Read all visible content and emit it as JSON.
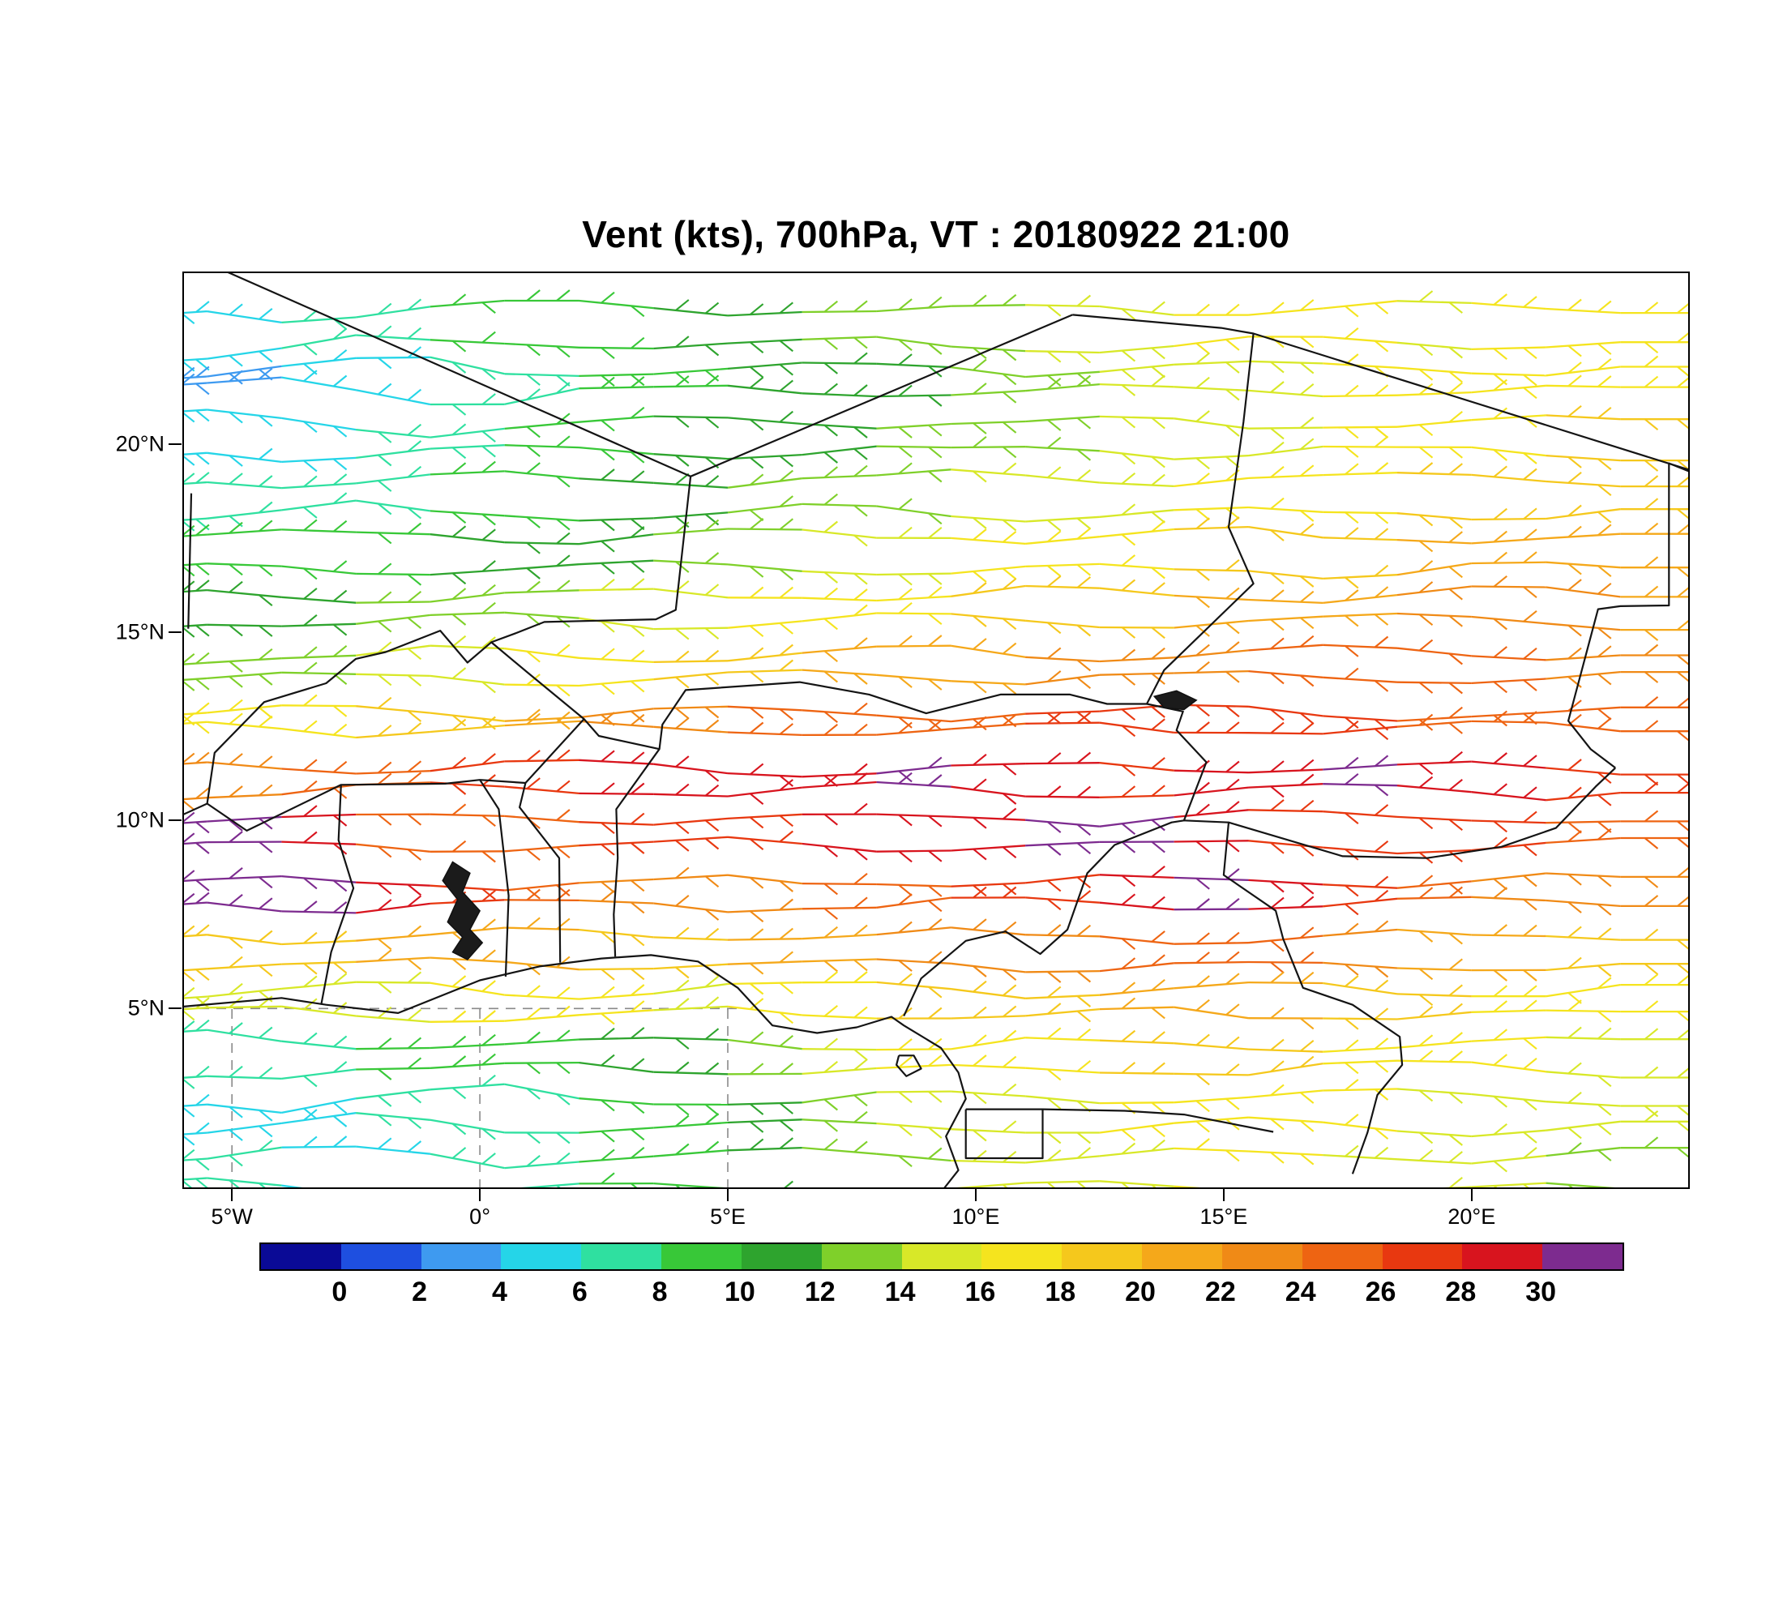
{
  "title": "Vent (kts), 700hPa, VT : 20180922  21:00",
  "map": {
    "extent": {
      "lon_min": -6,
      "lon_max": 24.4,
      "lat_min": 0.2,
      "lat_max": 24.6
    },
    "lat_ticks": [
      {
        "label": "20°N",
        "lat": 20
      },
      {
        "label": "15°N",
        "lat": 15
      },
      {
        "label": "10°N",
        "lat": 10
      },
      {
        "label": "5°N",
        "lat": 5
      }
    ],
    "lon_ticks": [
      {
        "label": "5°W",
        "lon": -5
      },
      {
        "label": "0°",
        "lon": 0
      },
      {
        "label": "5°E",
        "lon": 5
      },
      {
        "label": "10°E",
        "lon": 10
      },
      {
        "label": "15°E",
        "lon": 15
      },
      {
        "label": "20°E",
        "lon": 20
      }
    ],
    "dashed_gridlines": {
      "horizontal": [
        {
          "lat": 5,
          "lon_from": -6,
          "lon_to": 5.2
        }
      ],
      "vertical": [
        {
          "lon": -5,
          "lat_from": 0.2,
          "lat_to": 5
        },
        {
          "lon": 0,
          "lat_from": 0.2,
          "lat_to": 5
        },
        {
          "lon": 5,
          "lat_from": 0.2,
          "lat_to": 5
        }
      ]
    },
    "borders": [
      [
        [
          -5.2,
          24.65
        ],
        [
          4.25,
          19.15
        ]
      ],
      [
        [
          4.25,
          19.15
        ],
        [
          11.95,
          23.45
        ]
      ],
      [
        [
          11.95,
          23.45
        ],
        [
          14.95,
          23.1
        ],
        [
          15.6,
          22.95
        ],
        [
          24.45,
          19.3
        ]
      ],
      [
        [
          15.6,
          22.95
        ],
        [
          15.4,
          20.6
        ],
        [
          15.1,
          17.8
        ],
        [
          15.6,
          16.3
        ],
        [
          13.8,
          14.0
        ],
        [
          13.45,
          13.1
        ]
      ],
      [
        [
          4.25,
          19.15
        ],
        [
          3.95,
          15.6
        ],
        [
          3.55,
          15.35
        ],
        [
          1.3,
          15.28
        ],
        [
          0.7,
          14.97
        ],
        [
          0.23,
          14.74
        ],
        [
          -0.25,
          14.2
        ],
        [
          -0.8,
          15.05
        ],
        [
          -1.9,
          14.48
        ],
        [
          -2.5,
          14.3
        ],
        [
          -3.1,
          13.65
        ],
        [
          -4.35,
          13.15
        ],
        [
          -5.35,
          11.8
        ],
        [
          -5.5,
          10.45
        ],
        [
          -6,
          10.15
        ]
      ],
      [
        [
          0.23,
          14.74
        ],
        [
          0.95,
          13.95
        ],
        [
          2.1,
          12.7
        ],
        [
          2.4,
          12.25
        ],
        [
          3.62,
          11.9
        ],
        [
          3.68,
          12.55
        ],
        [
          4.15,
          13.47
        ],
        [
          6.45,
          13.68
        ],
        [
          7.85,
          13.35
        ],
        [
          9.0,
          12.85
        ],
        [
          10.5,
          13.35
        ],
        [
          11.9,
          13.35
        ],
        [
          12.65,
          13.1
        ],
        [
          13.45,
          13.1
        ]
      ],
      [
        [
          3.62,
          11.9
        ],
        [
          2.75,
          10.3
        ],
        [
          2.78,
          9.0
        ],
        [
          2.7,
          7.5
        ],
        [
          2.73,
          6.38
        ]
      ],
      [
        [
          1.62,
          6.22
        ],
        [
          1.6,
          9.0
        ],
        [
          0.8,
          10.35
        ],
        [
          0.92,
          11.0
        ]
      ],
      [
        [
          0.52,
          5.85
        ],
        [
          0.58,
          8.0
        ],
        [
          0.38,
          10.3
        ],
        [
          0.0,
          11.08
        ]
      ],
      [
        [
          -3.2,
          5.1
        ],
        [
          -3.0,
          6.5
        ],
        [
          -2.55,
          8.2
        ],
        [
          -2.85,
          9.48
        ],
        [
          -2.8,
          10.95
        ]
      ],
      [
        [
          -5.5,
          10.45
        ],
        [
          -4.7,
          9.73
        ],
        [
          -2.8,
          10.95
        ],
        [
          -0.7,
          10.98
        ],
        [
          0.0,
          11.08
        ],
        [
          0.92,
          11.0
        ],
        [
          2.1,
          12.7
        ]
      ],
      [
        [
          -6,
          5.05
        ],
        [
          -4.0,
          5.28
        ],
        [
          -3.1,
          5.1
        ],
        [
          -1.65,
          4.88
        ],
        [
          0.0,
          5.75
        ],
        [
          1.2,
          6.12
        ],
        [
          2.45,
          6.33
        ],
        [
          3.45,
          6.42
        ],
        [
          4.4,
          6.25
        ],
        [
          5.2,
          5.55
        ],
        [
          5.9,
          4.55
        ],
        [
          6.8,
          4.35
        ],
        [
          7.6,
          4.5
        ],
        [
          8.3,
          4.78
        ],
        [
          8.55,
          4.55
        ],
        [
          9.3,
          3.95
        ],
        [
          9.65,
          3.3
        ],
        [
          9.8,
          2.6
        ],
        [
          9.4,
          1.6
        ],
        [
          9.65,
          0.7
        ],
        [
          9.35,
          0.2
        ]
      ],
      [
        [
          8.55,
          4.8
        ],
        [
          8.9,
          5.8
        ],
        [
          9.8,
          6.8
        ],
        [
          10.6,
          7.05
        ],
        [
          11.3,
          6.45
        ],
        [
          11.85,
          7.1
        ],
        [
          12.25,
          8.6
        ],
        [
          12.8,
          9.35
        ],
        [
          13.95,
          9.95
        ],
        [
          14.2,
          10.0
        ],
        [
          14.65,
          11.55
        ],
        [
          14.05,
          12.4
        ],
        [
          14.18,
          12.9
        ],
        [
          13.45,
          13.1
        ]
      ],
      [
        [
          14.2,
          10.0
        ],
        [
          15.1,
          9.95
        ],
        [
          15.0,
          8.55
        ],
        [
          16.05,
          7.6
        ],
        [
          16.2,
          6.85
        ],
        [
          16.6,
          5.55
        ],
        [
          17.6,
          5.1
        ],
        [
          18.55,
          4.25
        ],
        [
          18.6,
          3.5
        ],
        [
          18.1,
          2.7
        ],
        [
          17.9,
          1.7
        ],
        [
          17.6,
          0.6
        ]
      ],
      [
        [
          15.1,
          9.95
        ],
        [
          17.4,
          9.05
        ],
        [
          19.1,
          9.0
        ],
        [
          20.6,
          9.3
        ],
        [
          21.7,
          9.8
        ],
        [
          22.5,
          10.9
        ],
        [
          22.9,
          11.4
        ]
      ],
      [
        [
          24.45,
          19.25
        ],
        [
          23.98,
          19.5
        ],
        [
          23.98,
          15.72
        ],
        [
          23.0,
          15.7
        ],
        [
          22.55,
          15.62
        ],
        [
          21.95,
          12.65
        ],
        [
          22.4,
          11.9
        ],
        [
          22.9,
          11.4
        ]
      ],
      [
        [
          9.8,
          2.32
        ],
        [
          11.35,
          2.32
        ],
        [
          13.0,
          2.28
        ],
        [
          14.2,
          2.18
        ],
        [
          16.0,
          1.72
        ]
      ],
      [
        [
          9.8,
          2.32
        ],
        [
          9.8,
          1.02
        ],
        [
          11.35,
          1.02
        ],
        [
          11.35,
          2.32
        ]
      ],
      [
        [
          8.45,
          3.75
        ],
        [
          8.75,
          3.75
        ],
        [
          8.9,
          3.4
        ],
        [
          8.6,
          3.2
        ],
        [
          8.4,
          3.5
        ],
        [
          8.45,
          3.75
        ]
      ],
      [
        [
          -5.88,
          15.1
        ],
        [
          -5.82,
          18.7
        ]
      ]
    ],
    "lakes": [
      [
        [
          -0.25,
          6.3
        ],
        [
          0.05,
          6.75
        ],
        [
          -0.2,
          7.1
        ],
        [
          0.0,
          7.6
        ],
        [
          -0.35,
          8.1
        ],
        [
          -0.2,
          8.6
        ],
        [
          -0.55,
          8.9
        ],
        [
          -0.75,
          8.4
        ],
        [
          -0.45,
          7.9
        ],
        [
          -0.65,
          7.3
        ],
        [
          -0.35,
          6.9
        ],
        [
          -0.55,
          6.5
        ],
        [
          -0.25,
          6.3
        ]
      ],
      [
        [
          13.6,
          13.3
        ],
        [
          14.05,
          13.45
        ],
        [
          14.45,
          13.2
        ],
        [
          14.2,
          12.95
        ],
        [
          13.8,
          13.0
        ],
        [
          13.6,
          13.3
        ]
      ]
    ]
  },
  "colorbar": {
    "units": "kts",
    "tick_labels": [
      "0",
      "2",
      "4",
      "6",
      "8",
      "10",
      "12",
      "14",
      "16",
      "18",
      "20",
      "22",
      "24",
      "26",
      "28",
      "30"
    ],
    "colors": [
      "#0A0A96",
      "#1E4FE0",
      "#3E9AF0",
      "#25D5E8",
      "#2FE0A0",
      "#38C838",
      "#2EA42E",
      "#7FD02A",
      "#D8E828",
      "#F5E41E",
      "#F5C81C",
      "#F5A81A",
      "#F08A16",
      "#EE6412",
      "#E83810",
      "#D8141E",
      "#7D2B8F"
    ]
  },
  "chart_data": {
    "type": "wind-barb-map",
    "title": "Vent (kts), 700hPa, VT : 20180922  21:00",
    "variable": "Vent",
    "units": "kts",
    "level": "700hPa",
    "valid_time": "20180922 21:00",
    "wind_direction": "predominantly easterly (zonal streamlines feathered on the eastern, upwind side)",
    "xlabel_ticks": [
      "5°W",
      "0°",
      "5°E",
      "10°E",
      "15°E",
      "20°E"
    ],
    "ylabel_ticks": [
      "20°N",
      "15°N",
      "10°N",
      "5°N"
    ],
    "speed_bins_kts": [
      0,
      2,
      4,
      6,
      8,
      10,
      12,
      14,
      16,
      18,
      20,
      22,
      24,
      26,
      28,
      30
    ],
    "grid": {
      "lats": [
        23.5,
        22,
        20.5,
        19,
        17.5,
        16,
        14.5,
        13,
        11.5,
        10,
        8.5,
        7,
        5.5,
        4,
        2.5,
        1
      ],
      "lons": [
        -5.5,
        -4,
        -2.5,
        -1,
        0.5,
        2,
        3.5,
        5,
        6.5,
        8,
        9.5,
        11,
        12.5,
        14,
        15.5,
        17,
        18.5,
        20,
        21.5,
        23
      ],
      "speeds_kts": [
        [
          4,
          6,
          6,
          8,
          8,
          8,
          10,
          10,
          12,
          12,
          12,
          14,
          14,
          16,
          16,
          16,
          14,
          16,
          16,
          16
        ],
        [
          2,
          4,
          4,
          6,
          6,
          8,
          8,
          10,
          10,
          10,
          12,
          12,
          14,
          14,
          14,
          16,
          16,
          16,
          16,
          16
        ],
        [
          4,
          4,
          6,
          6,
          8,
          8,
          10,
          10,
          10,
          12,
          12,
          12,
          14,
          14,
          14,
          16,
          16,
          16,
          18,
          18
        ],
        [
          6,
          6,
          6,
          8,
          8,
          10,
          10,
          12,
          12,
          12,
          14,
          14,
          14,
          16,
          16,
          16,
          18,
          18,
          18,
          18
        ],
        [
          8,
          8,
          8,
          10,
          10,
          10,
          12,
          12,
          14,
          14,
          16,
          16,
          16,
          18,
          18,
          18,
          20,
          20,
          20,
          20
        ],
        [
          10,
          10,
          12,
          12,
          12,
          14,
          14,
          16,
          16,
          16,
          18,
          18,
          18,
          20,
          20,
          20,
          22,
          22,
          22,
          20
        ],
        [
          12,
          12,
          14,
          14,
          16,
          16,
          18,
          18,
          20,
          20,
          20,
          22,
          22,
          22,
          24,
          24,
          24,
          24,
          22,
          22
        ],
        [
          16,
          16,
          18,
          18,
          20,
          22,
          22,
          24,
          24,
          24,
          24,
          26,
          26,
          26,
          26,
          26,
          24,
          24,
          24,
          24
        ],
        [
          22,
          24,
          24,
          26,
          26,
          28,
          28,
          28,
          28,
          30,
          28,
          28,
          26,
          28,
          28,
          30,
          28,
          28,
          26,
          26
        ],
        [
          30,
          28,
          24,
          24,
          24,
          26,
          26,
          26,
          28,
          28,
          28,
          30,
          30,
          28,
          26,
          26,
          26,
          26,
          24,
          24
        ],
        [
          30,
          30,
          28,
          26,
          24,
          22,
          22,
          22,
          24,
          24,
          26,
          26,
          28,
          30,
          28,
          26,
          24,
          22,
          22,
          22
        ],
        [
          18,
          18,
          20,
          20,
          20,
          18,
          18,
          20,
          20,
          22,
          22,
          22,
          24,
          24,
          24,
          22,
          20,
          20,
          18,
          18
        ],
        [
          14,
          14,
          14,
          16,
          16,
          16,
          14,
          16,
          16,
          18,
          18,
          18,
          20,
          20,
          20,
          18,
          18,
          16,
          16,
          16
        ],
        [
          6,
          6,
          8,
          8,
          8,
          10,
          10,
          12,
          14,
          16,
          16,
          16,
          18,
          18,
          18,
          16,
          16,
          16,
          14,
          14
        ],
        [
          4,
          4,
          6,
          6,
          6,
          8,
          8,
          10,
          12,
          14,
          14,
          14,
          16,
          16,
          16,
          16,
          14,
          14,
          14,
          14
        ],
        [
          6,
          4,
          4,
          6,
          6,
          8,
          8,
          10,
          12,
          12,
          14,
          14,
          14,
          16,
          16,
          14,
          14,
          14,
          12,
          12
        ]
      ]
    }
  }
}
